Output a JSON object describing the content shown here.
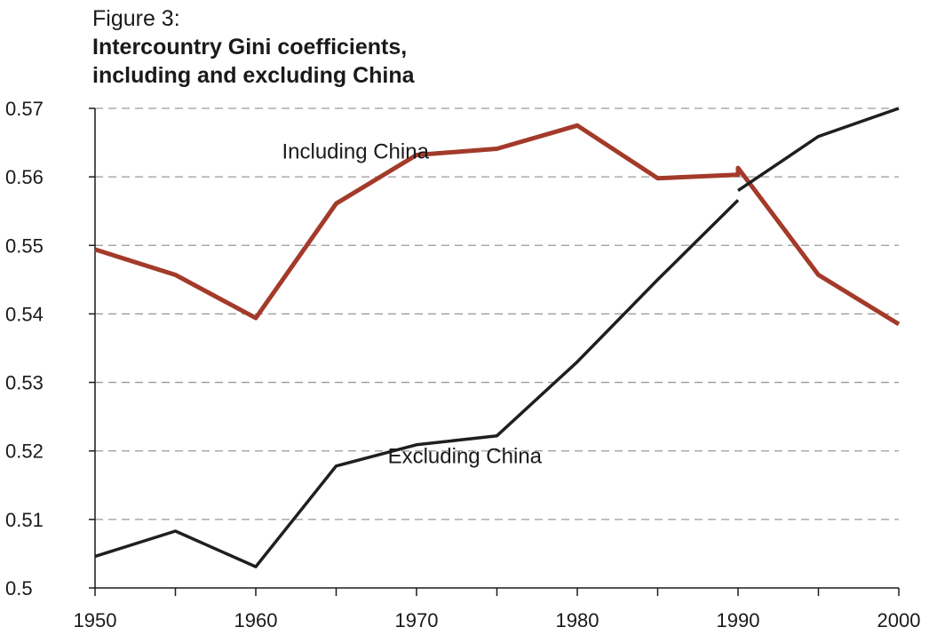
{
  "figure_label": "Figure 3:",
  "title_lines": [
    "Intercountry Gini coefficients,",
    "including and excluding China"
  ],
  "chart_data": {
    "type": "line",
    "title": "Intercountry Gini coefficients, including and excluding China",
    "xlabel": "",
    "ylabel": "",
    "xlim": [
      1950,
      2000
    ],
    "ylim": [
      0.5,
      0.57
    ],
    "xticks": [
      1950,
      1960,
      1970,
      1980,
      1990,
      2000
    ],
    "yticks": [
      0.5,
      0.51,
      0.52,
      0.53,
      0.54,
      0.55,
      0.56,
      0.57
    ],
    "ytick_labels": [
      "0.5",
      "0.51",
      "0.52",
      "0.53",
      "0.54",
      "0.55",
      "0.56",
      "0.57"
    ],
    "grid": "horizontal-dashed",
    "series": [
      {
        "name": "Including China",
        "color": "#a33a2a",
        "segments": [
          [
            [
              1950,
              0.5494
            ],
            [
              1955,
              0.5457
            ],
            [
              1960,
              0.5394
            ],
            [
              1965,
              0.5561
            ],
            [
              1970,
              0.5632
            ],
            [
              1975,
              0.5641
            ],
            [
              1980,
              0.5675
            ],
            [
              1985,
              0.5598
            ],
            [
              1990,
              0.5603
            ],
            [
              1990,
              0.5613
            ],
            [
              1995,
              0.5457
            ],
            [
              2000,
              0.5385
            ]
          ]
        ]
      },
      {
        "name": "Excluding China",
        "color": "#1f1f1f",
        "segments": [
          [
            [
              1950,
              0.5046
            ],
            [
              1955,
              0.5083
            ],
            [
              1960,
              0.5031
            ],
            [
              1965,
              0.5178
            ],
            [
              1970,
              0.5209
            ],
            [
              1975,
              0.5222
            ],
            [
              1980,
              0.533
            ],
            [
              1985,
              0.545
            ],
            [
              1990,
              0.5566
            ]
          ],
          [
            [
              1990,
              0.558
            ],
            [
              1995,
              0.5659
            ],
            [
              2000,
              0.57
            ]
          ]
        ]
      }
    ],
    "annotations": [
      {
        "text": "Including China",
        "series": "Including China"
      },
      {
        "text": "Excluding China",
        "series": "Excluding China"
      }
    ]
  }
}
